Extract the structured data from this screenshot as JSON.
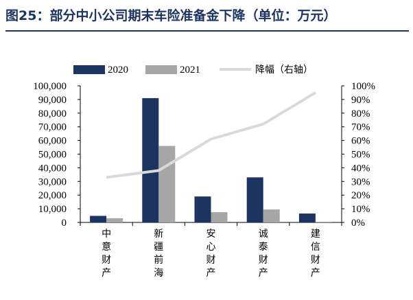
{
  "title": "图25：部分中小公司期末车险准备金下降（单位：万元）",
  "chart_data": {
    "type": "bar",
    "title": "图25：部分中小公司期末车险准备金下降（单位：万元）",
    "categories": [
      "中意财产",
      "新疆前海",
      "安心财产",
      "诚泰财产",
      "建信财产"
    ],
    "series": [
      {
        "name": "2020",
        "type": "bar",
        "axis": "left",
        "color": "#1c3461",
        "values": [
          4800,
          91000,
          19000,
          33000,
          6500
        ]
      },
      {
        "name": "2021",
        "type": "bar",
        "axis": "left",
        "color": "#a6a6a6",
        "values": [
          3000,
          56000,
          7500,
          9500,
          500
        ]
      },
      {
        "name": "降幅（右轴）",
        "type": "line",
        "axis": "right",
        "color": "#d9d9d9",
        "values": [
          33,
          38,
          61,
          72,
          95
        ]
      }
    ],
    "left_axis": {
      "min": 0,
      "max": 100000,
      "step": 10000,
      "tick_labels": [
        "0",
        "10,000",
        "20,000",
        "30,000",
        "40,000",
        "50,000",
        "60,000",
        "70,000",
        "80,000",
        "90,000",
        "100,000"
      ]
    },
    "right_axis": {
      "min": 0,
      "max": 100,
      "step": 10,
      "tick_labels": [
        "0%",
        "10%",
        "20%",
        "30%",
        "40%",
        "50%",
        "60%",
        "70%",
        "80%",
        "90%",
        "100%"
      ]
    },
    "legend_position": "top",
    "grid": false
  }
}
